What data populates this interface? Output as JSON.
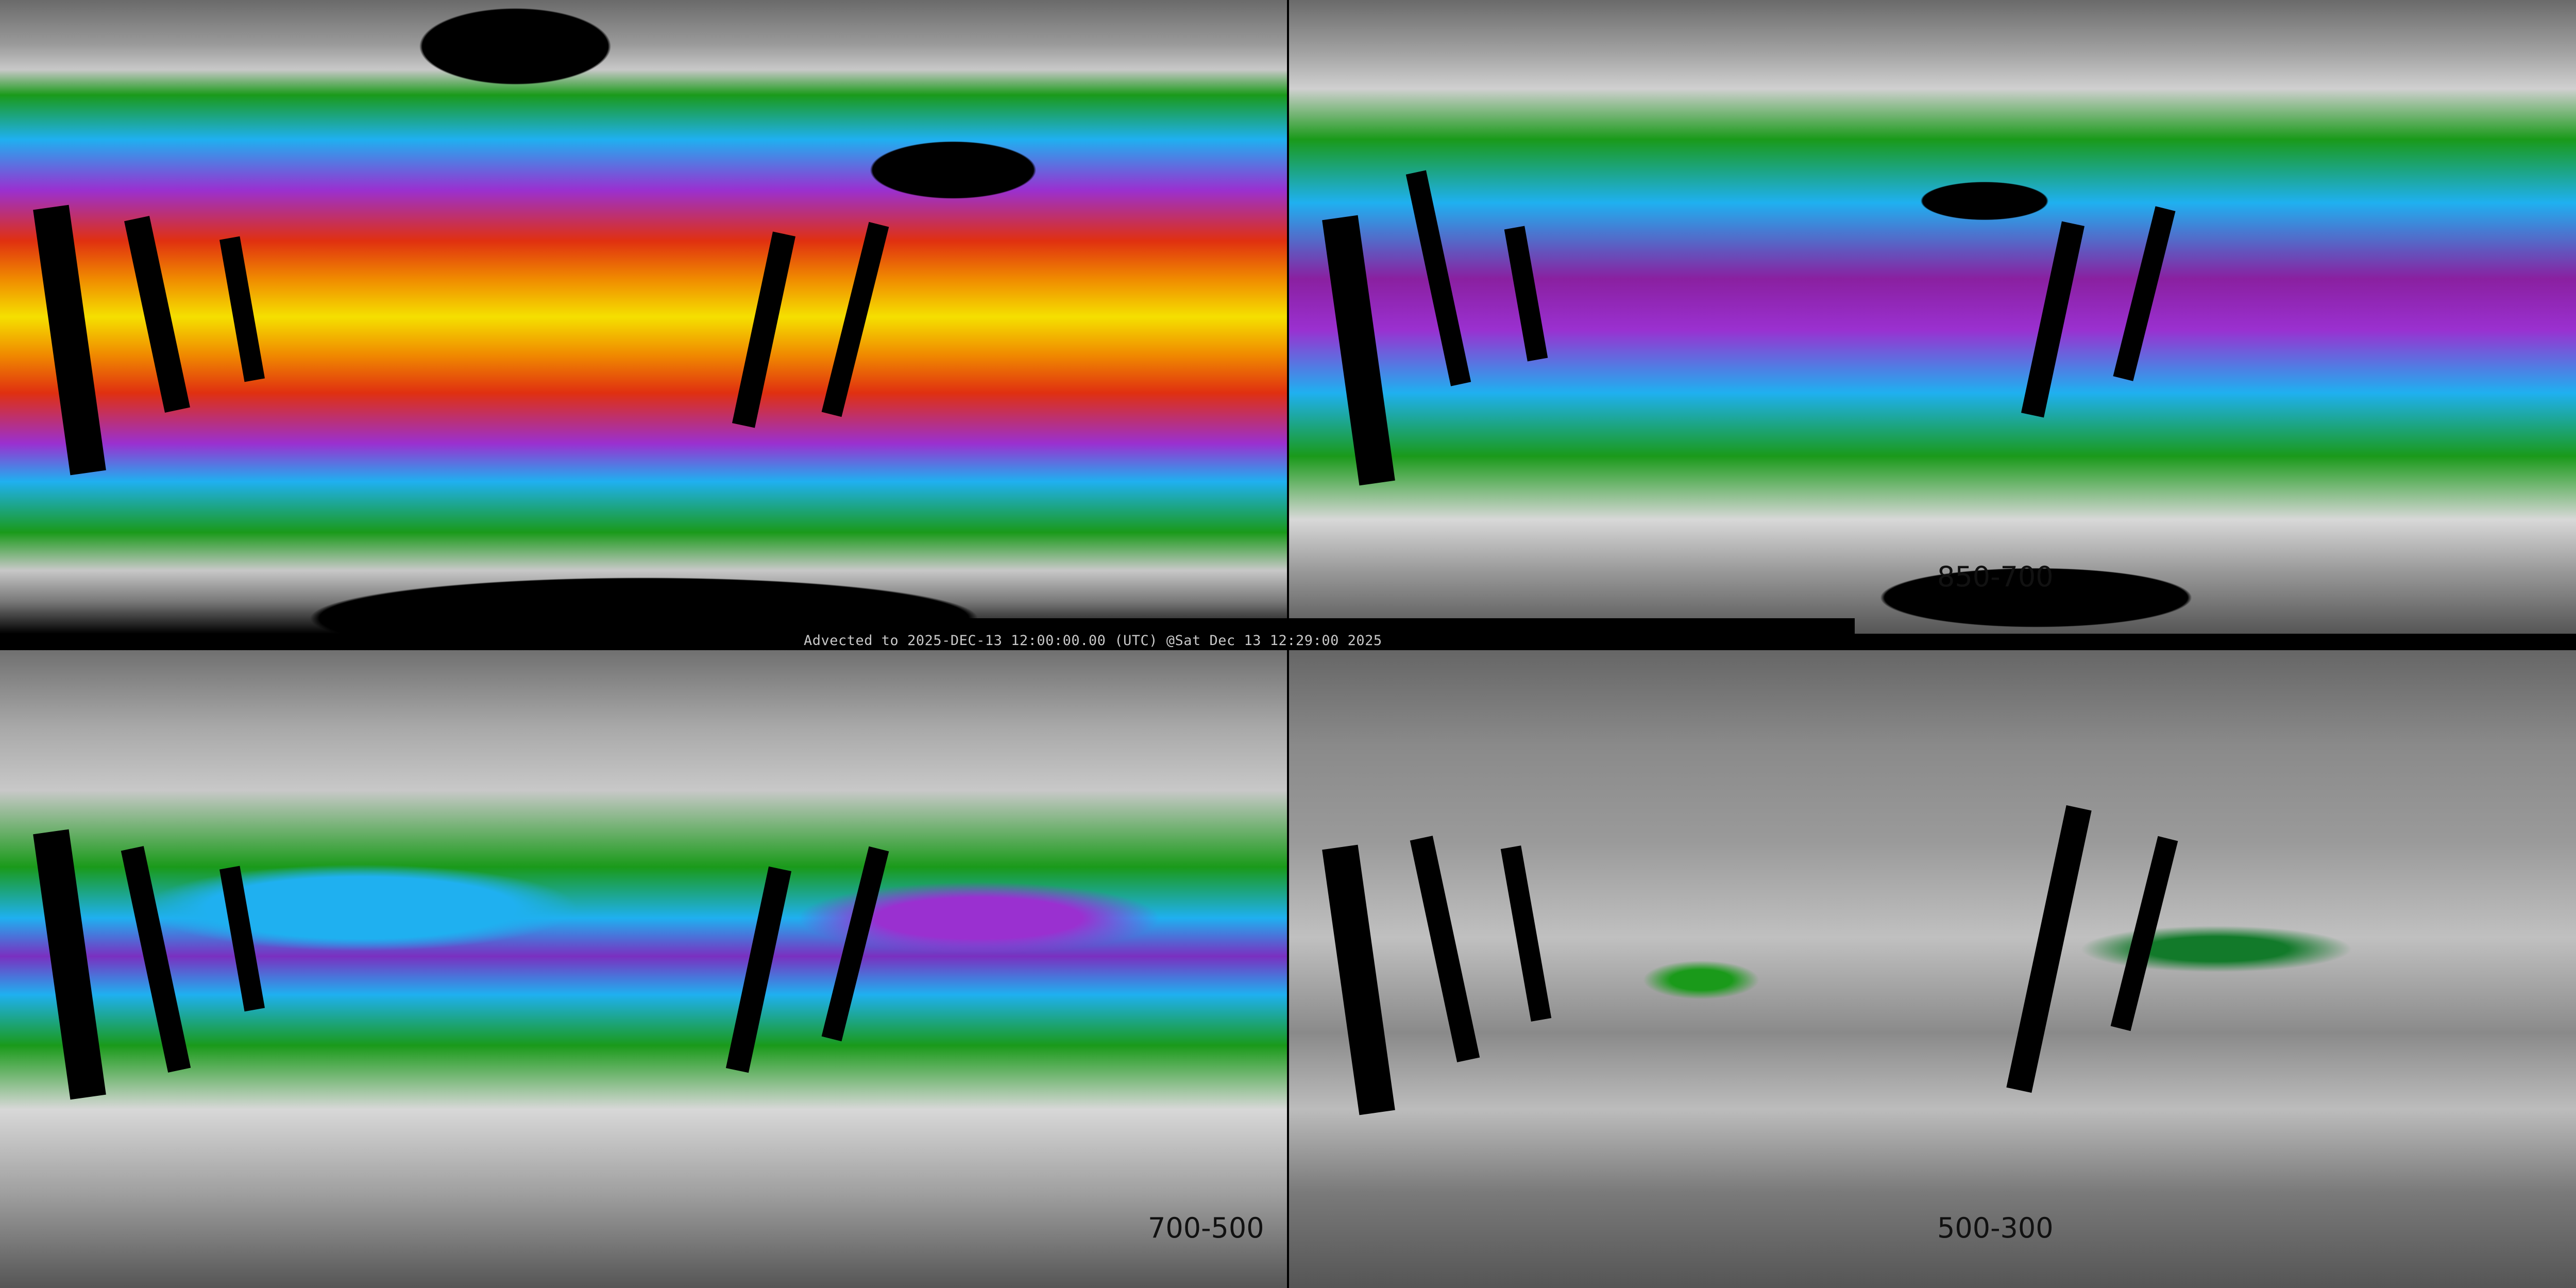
{
  "timestamp": "Advected to 2025-DEC-13 12:00:00.00 (UTC) @Sat Dec 13 12:29:00 2025",
  "panels": {
    "top_right": {
      "label": "850-700"
    },
    "bottom_left": {
      "label": "700-500"
    },
    "bottom_right": {
      "label": "500-300"
    }
  },
  "colors": {
    "dry": "#8a8a8a",
    "low": "#1a9a1a",
    "mid": "#1fb0f0",
    "high": "#9a30d0",
    "higher": "#e03010",
    "orange": "#f08a00",
    "max": "#f5e000",
    "missing": "#000000"
  }
}
